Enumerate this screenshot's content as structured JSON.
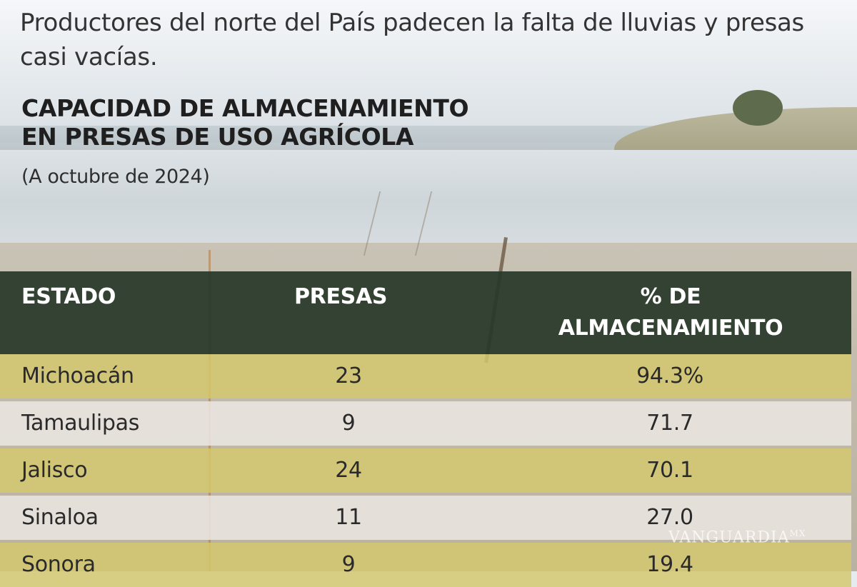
{
  "intro": "Productores del norte del País padecen la falta de lluvias y presas casi vacías.",
  "title_line1": "CAPACIDAD DE ALMACENAMIENTO",
  "title_line2": "EN PRESAS DE USO AGRÍCOLA",
  "subtitle": "(A octubre de 2024)",
  "table": {
    "headers": {
      "estado": "ESTADO",
      "presas": "PRESAS",
      "pct_line1": "% DE",
      "pct_line2": "ALMACENAMIENTO"
    },
    "rows": [
      {
        "estado": "Michoacán",
        "presas": "23",
        "pct": "94.3%"
      },
      {
        "estado": "Tamaulipas",
        "presas": "9",
        "pct": "71.7"
      },
      {
        "estado": "Jalisco",
        "presas": "24",
        "pct": "70.1"
      },
      {
        "estado": "Sinaloa",
        "presas": "11",
        "pct": "27.0"
      },
      {
        "estado": "Sonora",
        "presas": "9",
        "pct": "19.4"
      }
    ]
  },
  "watermark": {
    "name": "VANGUARDIA",
    "suffix": "MX"
  },
  "colors": {
    "header_bg": "#273728",
    "row_olive": "#d4c86e",
    "row_light": "#e9e5e0"
  }
}
